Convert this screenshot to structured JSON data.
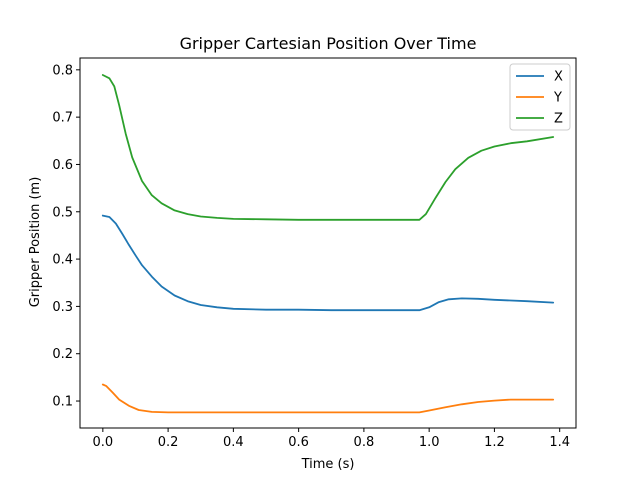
{
  "chart_data": {
    "type": "line",
    "title": "Gripper Cartesian Position Over Time",
    "xlabel": "Time (s)",
    "ylabel": "Gripper Position (m)",
    "xlim": [
      -0.07,
      1.45
    ],
    "ylim": [
      0.043,
      0.825
    ],
    "xticks": [
      0.0,
      0.2,
      0.4,
      0.6,
      0.8,
      1.0,
      1.2,
      1.4
    ],
    "xtick_labels": [
      "0.0",
      "0.2",
      "0.4",
      "0.6",
      "0.8",
      "1.0",
      "1.2",
      "1.4"
    ],
    "yticks": [
      0.1,
      0.2,
      0.3,
      0.4,
      0.5,
      0.6,
      0.7,
      0.8
    ],
    "ytick_labels": [
      "0.1",
      "0.2",
      "0.3",
      "0.4",
      "0.5",
      "0.6",
      "0.7",
      "0.8"
    ],
    "grid": false,
    "legend_position": "upper right",
    "series": [
      {
        "name": "X",
        "color": "#1f77b4",
        "x": [
          0.0,
          0.02,
          0.04,
          0.06,
          0.08,
          0.1,
          0.12,
          0.15,
          0.18,
          0.22,
          0.26,
          0.3,
          0.35,
          0.4,
          0.5,
          0.6,
          0.7,
          0.8,
          0.9,
          0.97,
          1.0,
          1.03,
          1.06,
          1.1,
          1.15,
          1.2,
          1.3,
          1.38
        ],
        "y": [
          0.492,
          0.489,
          0.475,
          0.453,
          0.43,
          0.408,
          0.387,
          0.363,
          0.342,
          0.323,
          0.311,
          0.303,
          0.298,
          0.295,
          0.293,
          0.293,
          0.292,
          0.292,
          0.292,
          0.292,
          0.298,
          0.309,
          0.315,
          0.317,
          0.316,
          0.314,
          0.311,
          0.308
        ]
      },
      {
        "name": "Y",
        "color": "#ff7f0e",
        "x": [
          0.0,
          0.01,
          0.03,
          0.05,
          0.08,
          0.11,
          0.15,
          0.2,
          0.3,
          0.4,
          0.5,
          0.6,
          0.7,
          0.8,
          0.9,
          0.97,
          1.0,
          1.05,
          1.1,
          1.15,
          1.2,
          1.25,
          1.3,
          1.38
        ],
        "y": [
          0.135,
          0.132,
          0.118,
          0.103,
          0.09,
          0.081,
          0.077,
          0.076,
          0.076,
          0.076,
          0.076,
          0.076,
          0.076,
          0.076,
          0.076,
          0.076,
          0.08,
          0.087,
          0.093,
          0.098,
          0.101,
          0.103,
          0.103,
          0.103
        ]
      },
      {
        "name": "Z",
        "color": "#2ca02c",
        "x": [
          0.0,
          0.02,
          0.035,
          0.05,
          0.07,
          0.09,
          0.12,
          0.15,
          0.18,
          0.22,
          0.26,
          0.3,
          0.35,
          0.4,
          0.5,
          0.6,
          0.7,
          0.8,
          0.9,
          0.97,
          0.99,
          1.02,
          1.05,
          1.08,
          1.12,
          1.16,
          1.2,
          1.25,
          1.3,
          1.38
        ],
        "y": [
          0.789,
          0.782,
          0.765,
          0.725,
          0.665,
          0.615,
          0.565,
          0.535,
          0.518,
          0.503,
          0.495,
          0.49,
          0.487,
          0.485,
          0.484,
          0.483,
          0.483,
          0.483,
          0.483,
          0.483,
          0.495,
          0.53,
          0.563,
          0.59,
          0.614,
          0.629,
          0.638,
          0.645,
          0.649,
          0.658
        ]
      }
    ]
  }
}
